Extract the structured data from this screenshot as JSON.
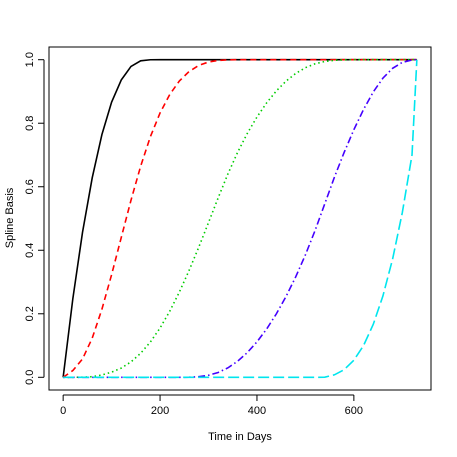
{
  "chart_data": {
    "type": "line",
    "title": "",
    "xlabel": "Time in Days",
    "ylabel": "Spline Basis",
    "xlim": [
      -29.2,
      759.2
    ],
    "ylim": [
      -0.04,
      1.04
    ],
    "x_ticks": [
      0,
      200,
      400,
      600
    ],
    "x_tick_labels": [
      "0",
      "200",
      "400",
      "600"
    ],
    "y_ticks": [
      0.0,
      0.2,
      0.4,
      0.6,
      0.8,
      1.0
    ],
    "y_tick_labels": [
      "0.0",
      "0.2",
      "0.4",
      "0.6",
      "0.8",
      "1.0"
    ],
    "grid": false,
    "legend": "none",
    "x": [
      0,
      20,
      40,
      60,
      80,
      100,
      120,
      140,
      160,
      180,
      200,
      220,
      240,
      260,
      280,
      300,
      320,
      340,
      360,
      380,
      400,
      420,
      440,
      460,
      480,
      500,
      520,
      540,
      560,
      580,
      600,
      620,
      640,
      660,
      680,
      700,
      720,
      730
    ],
    "series": [
      {
        "color": "#000000",
        "dash": "solid",
        "values": [
          0.0,
          0.2475,
          0.4568,
          0.6281,
          0.7644,
          0.8662,
          0.9364,
          0.9788,
          0.9966,
          0.9999,
          1.0,
          1.0,
          1.0,
          1.0,
          1.0,
          1.0,
          1.0,
          1.0,
          1.0,
          1.0,
          1.0,
          1.0,
          1.0,
          1.0,
          1.0,
          1.0,
          1.0,
          1.0,
          1.0,
          1.0,
          1.0,
          1.0,
          1.0,
          1.0,
          1.0,
          1.0,
          1.0,
          1.0
        ]
      },
      {
        "color": "#ff0000",
        "dash": "dashed",
        "values": [
          0.0,
          0.0213,
          0.0577,
          0.1233,
          0.2142,
          0.3231,
          0.4406,
          0.5573,
          0.6649,
          0.7573,
          0.8323,
          0.8904,
          0.9332,
          0.963,
          0.982,
          0.9927,
          0.9978,
          0.9997,
          1.0,
          1.0,
          1.0,
          1.0,
          1.0,
          1.0,
          1.0,
          1.0,
          1.0,
          1.0,
          1.0,
          1.0,
          1.0,
          1.0,
          1.0,
          1.0,
          1.0,
          1.0,
          1.0,
          1.0
        ]
      },
      {
        "color": "#00cd00",
        "dash": "dotted",
        "values": [
          0.0,
          0.0,
          0.0004,
          0.002,
          0.0073,
          0.0162,
          0.0291,
          0.0485,
          0.0757,
          0.1111,
          0.1552,
          0.208,
          0.2688,
          0.3367,
          0.4101,
          0.4872,
          0.5653,
          0.6402,
          0.7081,
          0.7678,
          0.8196,
          0.8641,
          0.9017,
          0.9326,
          0.9568,
          0.9749,
          0.9871,
          0.9944,
          0.9981,
          0.9996,
          1.0,
          1.0,
          1.0,
          1.0,
          1.0,
          1.0,
          1.0,
          1.0
        ]
      },
      {
        "color": "#4400ff",
        "dash": "dashdot",
        "values": [
          0.0,
          0.0,
          0.0,
          0.0,
          0.0,
          0.0,
          0.0,
          0.0,
          0.0,
          0.0,
          0.0,
          0.0,
          0.0,
          0.0002,
          0.0019,
          0.0064,
          0.0152,
          0.0297,
          0.0505,
          0.0777,
          0.1115,
          0.1521,
          0.1997,
          0.2544,
          0.3163,
          0.3856,
          0.4624,
          0.5465,
          0.6306,
          0.7084,
          0.7796,
          0.8434,
          0.8983,
          0.942,
          0.973,
          0.9915,
          0.9992,
          1.0
        ]
      },
      {
        "color": "#00e5ee",
        "dash": "longdash",
        "values": [
          0.0,
          0.0,
          0.0,
          0.0,
          0.0,
          0.0,
          0.0,
          0.0,
          0.0,
          0.0,
          0.0,
          0.0,
          0.0,
          0.0,
          0.0,
          0.0,
          0.0,
          0.0,
          0.0,
          0.0,
          0.0,
          0.0,
          0.0,
          0.0,
          0.0,
          0.0,
          0.0,
          0.0003,
          0.0079,
          0.024,
          0.0537,
          0.1001,
          0.1666,
          0.2563,
          0.3726,
          0.5187,
          0.7,
          1.0
        ]
      }
    ]
  }
}
